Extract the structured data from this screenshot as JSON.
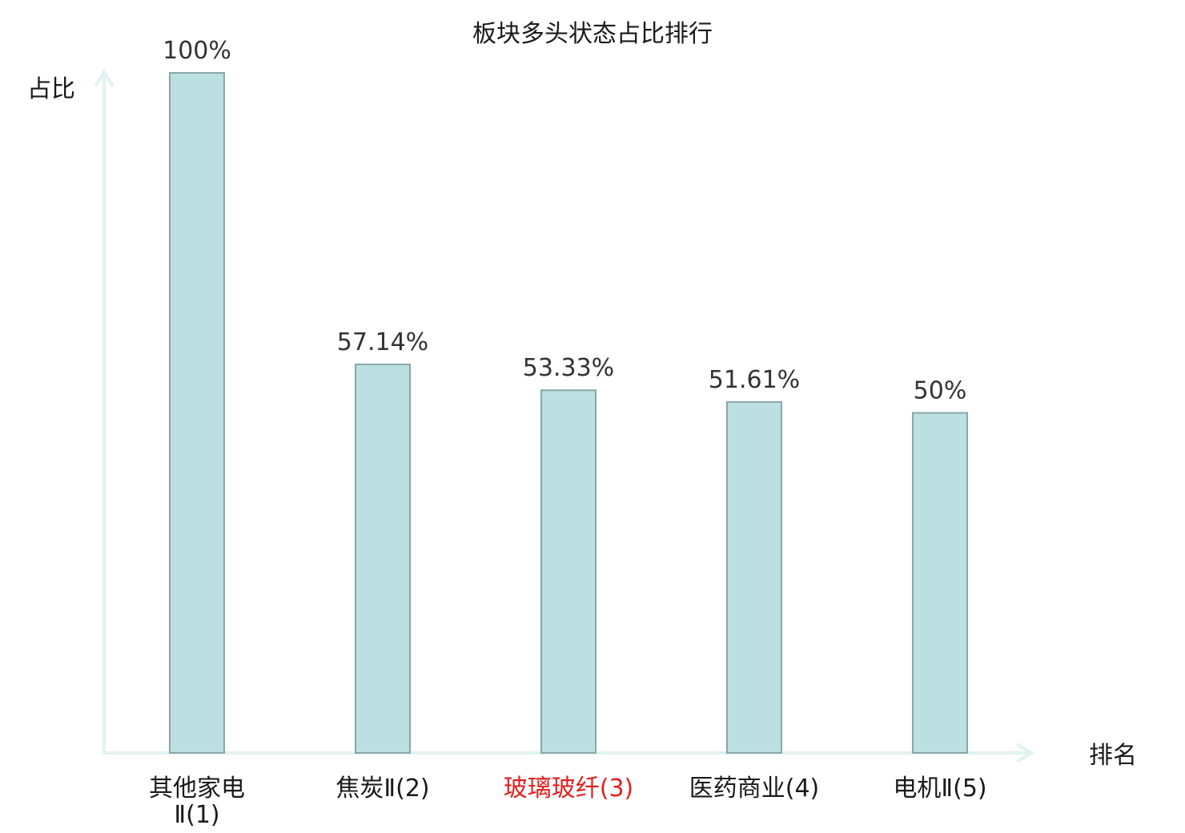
{
  "chart_data": {
    "type": "bar",
    "title": "板块多头状态占比排行",
    "ylabel": "占比",
    "xlabel": "排名",
    "ylim": [
      0,
      100
    ],
    "grid": false,
    "categories": [
      {
        "name_lines": [
          "其他家电",
          "Ⅱ(1)"
        ],
        "highlight": false
      },
      {
        "name_lines": [
          "焦炭Ⅱ(2)"
        ],
        "highlight": false
      },
      {
        "name_lines": [
          "玻璃玻纤(3)"
        ],
        "highlight": true
      },
      {
        "name_lines": [
          "医药商业(4)"
        ],
        "highlight": false
      },
      {
        "name_lines": [
          "电机Ⅱ(5)"
        ],
        "highlight": false
      }
    ],
    "values": [
      100,
      57.14,
      53.33,
      51.61,
      50
    ],
    "value_labels": [
      "100%",
      "57.14%",
      "53.33%",
      "51.61%",
      "50%"
    ],
    "colors": {
      "bar_fill": "#bce0e2",
      "bar_stroke": "#8aa6a8",
      "axis": "#e2f2f1",
      "highlight": "#e02020"
    }
  }
}
